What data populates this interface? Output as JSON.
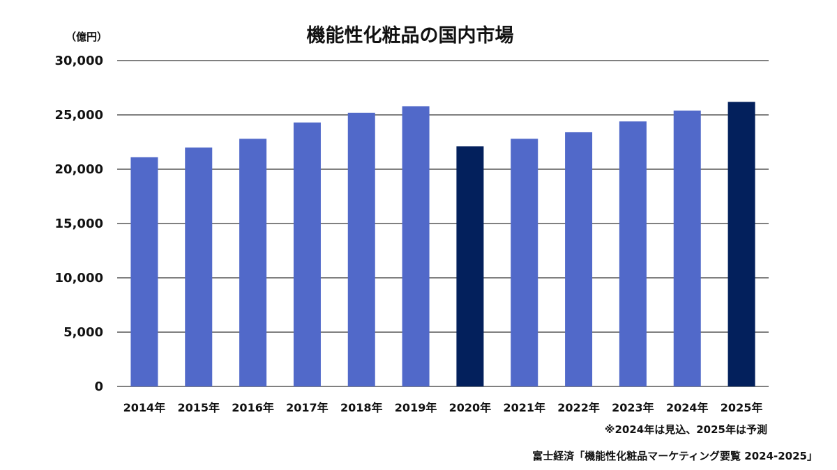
{
  "chart_data": {
    "type": "bar",
    "title": "機能性化粧品の国内市場",
    "ylabel": "（億円）",
    "xlabel": "",
    "ylim": [
      0,
      30000
    ],
    "yticks": [
      0,
      5000,
      10000,
      15000,
      20000,
      25000,
      30000
    ],
    "ytick_labels": [
      "0",
      "5,000",
      "10,000",
      "15,000",
      "20,000",
      "25,000",
      "30,000"
    ],
    "grid": true,
    "categories": [
      "2014年",
      "2015年",
      "2016年",
      "2017年",
      "2018年",
      "2019年",
      "2020年",
      "2021年",
      "2022年",
      "2023年",
      "2024年",
      "2025年"
    ],
    "values": [
      21100,
      22000,
      22800,
      24300,
      25200,
      25800,
      22100,
      22800,
      23400,
      24400,
      25400,
      26200
    ],
    "bar_colors": [
      "#5169c9",
      "#5169c9",
      "#5169c9",
      "#5169c9",
      "#5169c9",
      "#5169c9",
      "#03205c",
      "#5169c9",
      "#5169c9",
      "#5169c9",
      "#5169c9",
      "#03205c"
    ],
    "note": "※2024年は見込、2025年は予測",
    "source": "富士経済「機能性化粧品マーケティング要覧 2024-2025」"
  }
}
